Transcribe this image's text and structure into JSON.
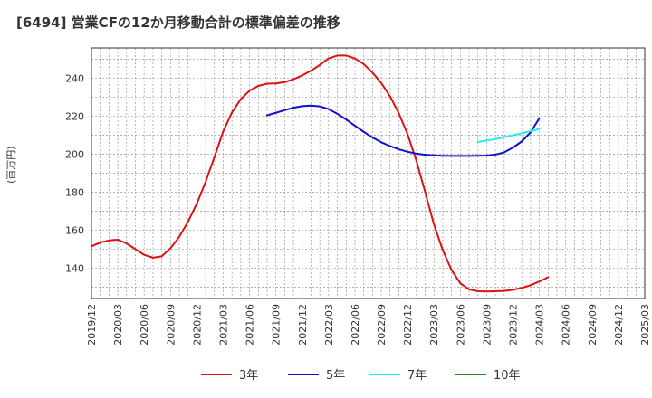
{
  "chart_data": {
    "type": "line",
    "title": "[6494]  営業CFの12か月移動合計の標準偏差の推移",
    "ylabel": "(百万円)",
    "xlabel": "",
    "ylim": [
      124,
      256
    ],
    "yticks": [
      140,
      160,
      180,
      200,
      220,
      240
    ],
    "x_range": [
      "2019/12",
      "2025/03"
    ],
    "xticks": [
      "2019/12",
      "2020/03",
      "2020/06",
      "2020/09",
      "2020/12",
      "2021/03",
      "2021/06",
      "2021/09",
      "2021/12",
      "2022/03",
      "2022/06",
      "2022/09",
      "2022/12",
      "2023/03",
      "2023/06",
      "2023/09",
      "2023/12",
      "2024/03",
      "2024/06",
      "2024/09",
      "2024/12",
      "2025/03"
    ],
    "grid": true,
    "legend_position": "bottom",
    "series": [
      {
        "name": "3年",
        "color": "#dd1111",
        "points": [
          [
            "2019/12",
            151.5
          ],
          [
            "2020/01",
            153.5
          ],
          [
            "2020/02",
            154.6
          ],
          [
            "2020/03",
            155.0
          ],
          [
            "2020/04",
            153.0
          ],
          [
            "2020/05",
            150.0
          ],
          [
            "2020/06",
            147.0
          ],
          [
            "2020/07",
            145.5
          ],
          [
            "2020/08",
            146.2
          ],
          [
            "2020/09",
            150.5
          ],
          [
            "2020/10",
            156.5
          ],
          [
            "2020/11",
            164.5
          ],
          [
            "2020/12",
            174.0
          ],
          [
            "2021/01",
            185.5
          ],
          [
            "2021/02",
            198.5
          ],
          [
            "2021/03",
            212.0
          ],
          [
            "2021/04",
            222.0
          ],
          [
            "2021/05",
            229.0
          ],
          [
            "2021/06",
            233.5
          ],
          [
            "2021/07",
            236.0
          ],
          [
            "2021/08",
            237.2
          ],
          [
            "2021/09",
            237.3
          ],
          [
            "2021/10",
            238.0
          ],
          [
            "2021/11",
            239.5
          ],
          [
            "2021/12",
            241.5
          ],
          [
            "2022/01",
            244.0
          ],
          [
            "2022/02",
            247.0
          ],
          [
            "2022/03",
            250.5
          ],
          [
            "2022/04",
            252.0
          ],
          [
            "2022/05",
            252.0
          ],
          [
            "2022/06",
            250.5
          ],
          [
            "2022/07",
            247.5
          ],
          [
            "2022/08",
            243.0
          ],
          [
            "2022/09",
            237.5
          ],
          [
            "2022/10",
            230.5
          ],
          [
            "2022/11",
            221.5
          ],
          [
            "2022/12",
            210.5
          ],
          [
            "2023/01",
            196.5
          ],
          [
            "2023/02",
            180.0
          ],
          [
            "2023/03",
            163.0
          ],
          [
            "2023/04",
            149.5
          ],
          [
            "2023/05",
            139.0
          ],
          [
            "2023/06",
            132.0
          ],
          [
            "2023/07",
            128.8
          ],
          [
            "2023/08",
            127.8
          ],
          [
            "2023/09",
            127.7
          ],
          [
            "2023/10",
            127.8
          ],
          [
            "2023/11",
            128.0
          ],
          [
            "2023/12",
            128.6
          ],
          [
            "2024/01",
            129.6
          ],
          [
            "2024/02",
            131.0
          ],
          [
            "2024/03",
            133.0
          ],
          [
            "2024/04",
            135.2
          ]
        ]
      },
      {
        "name": "5年",
        "color": "#1111cc",
        "points": [
          [
            "2021/08",
            220.5
          ],
          [
            "2021/09",
            221.8
          ],
          [
            "2021/10",
            223.2
          ],
          [
            "2021/11",
            224.5
          ],
          [
            "2021/12",
            225.3
          ],
          [
            "2022/01",
            225.6
          ],
          [
            "2022/02",
            225.2
          ],
          [
            "2022/03",
            223.8
          ],
          [
            "2022/04",
            221.3
          ],
          [
            "2022/05",
            218.3
          ],
          [
            "2022/06",
            215.0
          ],
          [
            "2022/07",
            211.8
          ],
          [
            "2022/08",
            208.8
          ],
          [
            "2022/09",
            206.3
          ],
          [
            "2022/10",
            204.3
          ],
          [
            "2022/11",
            202.6
          ],
          [
            "2022/12",
            201.3
          ],
          [
            "2023/01",
            200.3
          ],
          [
            "2023/02",
            199.7
          ],
          [
            "2023/03",
            199.4
          ],
          [
            "2023/04",
            199.2
          ],
          [
            "2023/05",
            199.1
          ],
          [
            "2023/06",
            199.1
          ],
          [
            "2023/07",
            199.1
          ],
          [
            "2023/08",
            199.2
          ],
          [
            "2023/09",
            199.3
          ],
          [
            "2023/10",
            199.8
          ],
          [
            "2023/11",
            201.0
          ],
          [
            "2023/12",
            203.5
          ],
          [
            "2024/01",
            206.8
          ],
          [
            "2024/02",
            211.5
          ],
          [
            "2024/03",
            219.0
          ]
        ]
      },
      {
        "name": "7年",
        "color": "#22eeee",
        "points": [
          [
            "2023/08",
            206.5
          ],
          [
            "2023/09",
            207.2
          ],
          [
            "2023/10",
            208.0
          ],
          [
            "2023/11",
            209.0
          ],
          [
            "2023/12",
            210.0
          ],
          [
            "2024/01",
            211.0
          ],
          [
            "2024/02",
            212.2
          ],
          [
            "2024/03",
            213.3
          ]
        ]
      },
      {
        "name": "10年",
        "color": "#228822",
        "points": []
      }
    ]
  }
}
